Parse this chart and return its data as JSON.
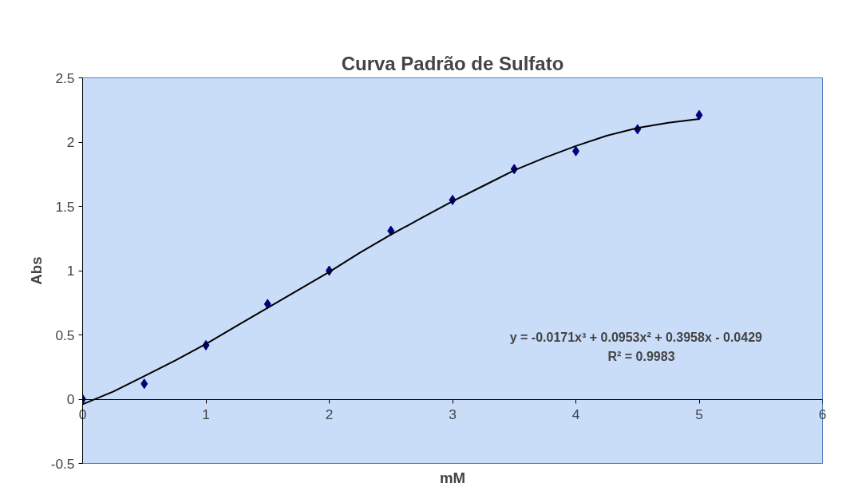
{
  "chart_data": {
    "type": "scatter",
    "title": "Curva Padrão de Sulfato",
    "xlabel": "mM",
    "ylabel": "Abs",
    "xlim": [
      0,
      6
    ],
    "xticks": [
      0,
      1,
      2,
      3,
      4,
      5,
      6
    ],
    "ylim": [
      -0.5,
      2.5
    ],
    "yticks": [
      -0.5,
      0,
      0.5,
      1,
      1.5,
      2,
      2.5
    ],
    "grid": false,
    "marker": "diamond",
    "series": [
      {
        "color": "#000080",
        "x": [
          0,
          0.5,
          1,
          1.5,
          2,
          2.5,
          3,
          3.5,
          4,
          4.5,
          5
        ],
        "values": [
          0,
          0.12,
          0.42,
          0.74,
          1.0,
          1.31,
          1.55,
          1.79,
          1.93,
          2.1,
          2.21
        ]
      },
      {
        "type": "line",
        "color": "#000000",
        "marker": "none",
        "line_style": "solid",
        "x": [
          0,
          0.25,
          0.5,
          0.75,
          1,
          1.25,
          1.5,
          1.75,
          2,
          2.25,
          2.5,
          2.75,
          3,
          3.25,
          3.5,
          3.75,
          4,
          4.25,
          4.5,
          4.75,
          5
        ],
        "values": [
          -0.04,
          0.06,
          0.18,
          0.3,
          0.43,
          0.57,
          0.71,
          0.85,
          0.99,
          1.14,
          1.28,
          1.41,
          1.54,
          1.66,
          1.78,
          1.88,
          1.97,
          2.05,
          2.11,
          2.15,
          2.18
        ]
      }
    ],
    "annotations": [
      "y = -0.0171x³  + 0.0953x²  + 0.3958x  - 0.0429",
      "R² = 0.9983"
    ]
  }
}
